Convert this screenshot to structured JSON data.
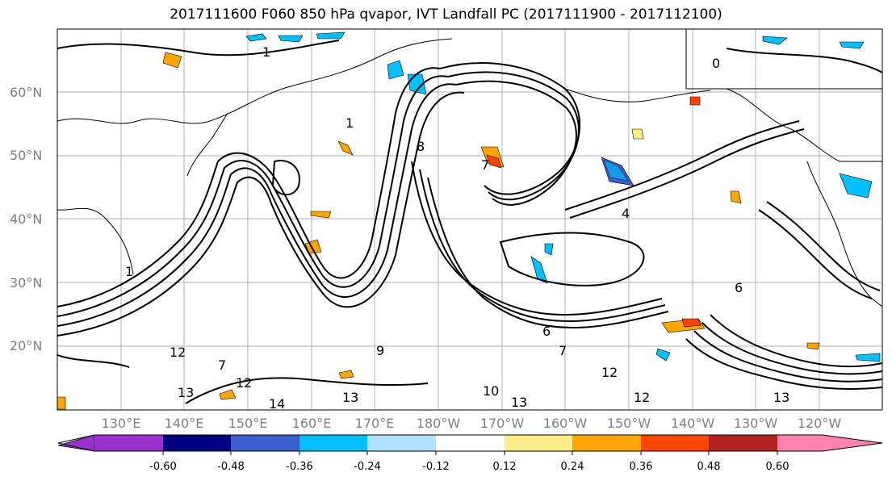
{
  "title": "2017111600 F060 850 hPa qvapor, IVT Landfall PC (2017111900 - 2017112100)",
  "map": {
    "lat_labels": [
      "60°N",
      "50°N",
      "40°N",
      "30°N",
      "20°N"
    ],
    "lon_labels": [
      "130°E",
      "140°E",
      "150°E",
      "160°E",
      "170°E",
      "180°W",
      "170°W",
      "160°W",
      "150°W",
      "140°W",
      "130°W",
      "120°W"
    ],
    "contour_labels": [
      "1",
      "0",
      "8",
      "1",
      "12",
      "7",
      "12",
      "13",
      "14",
      "13",
      "10",
      "13",
      "12",
      "13",
      "12",
      "6",
      "4",
      "7",
      "1",
      "9",
      "7",
      "6"
    ],
    "grid": true
  },
  "colorbar": {
    "ticks": [
      "-0.60",
      "-0.48",
      "-0.36",
      "-0.24",
      "-0.12",
      "0.12",
      "0.24",
      "0.36",
      "0.48",
      "0.60"
    ],
    "colors": [
      "#9932cc",
      "#000080",
      "#3a5fcd",
      "#00bfff",
      "#b0e2ff",
      "#ffffff",
      "#ffec8b",
      "#ffa500",
      "#ff4500",
      "#b22222",
      "#ff83af"
    ]
  }
}
